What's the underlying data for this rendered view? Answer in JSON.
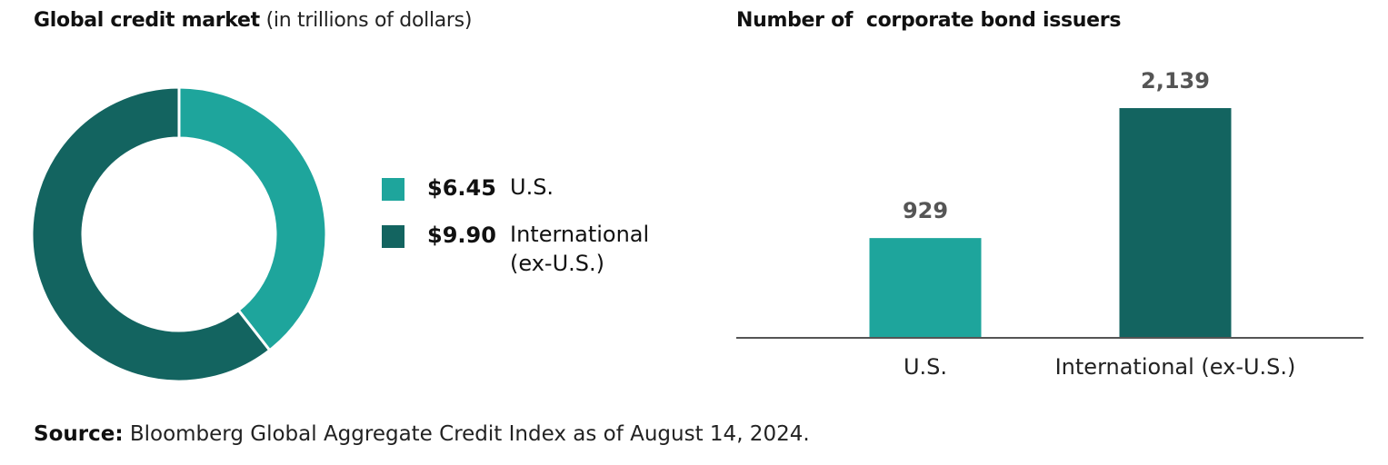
{
  "chart_data": [
    {
      "type": "pie",
      "title": "Global credit market",
      "subtitle": "(in trillions of dollars)",
      "donut": true,
      "slices": [
        {
          "label": "U.S.",
          "value": 6.45,
          "display": "$6.45",
          "color": "#1ea59c"
        },
        {
          "label": "International",
          "label_line2": "(ex-U.S.)",
          "value": 9.9,
          "display": "$9.90",
          "color": "#136460"
        }
      ],
      "legend": "right"
    },
    {
      "type": "bar",
      "title": "Number of  corporate bond issuers",
      "categories": [
        "U.S.",
        "International (ex-U.S.)"
      ],
      "values": [
        929,
        2139
      ],
      "value_labels": [
        "929",
        "2,139"
      ],
      "colors": [
        "#1ea59c",
        "#136460"
      ],
      "ylim": [
        0,
        2300
      ],
      "grid": false
    }
  ],
  "source": {
    "label": "Source:",
    "text": "Bloomberg Global Aggregate Credit Index as of August 14, 2024."
  },
  "colors": {
    "axis": "#555555",
    "value_label": "#555555"
  }
}
